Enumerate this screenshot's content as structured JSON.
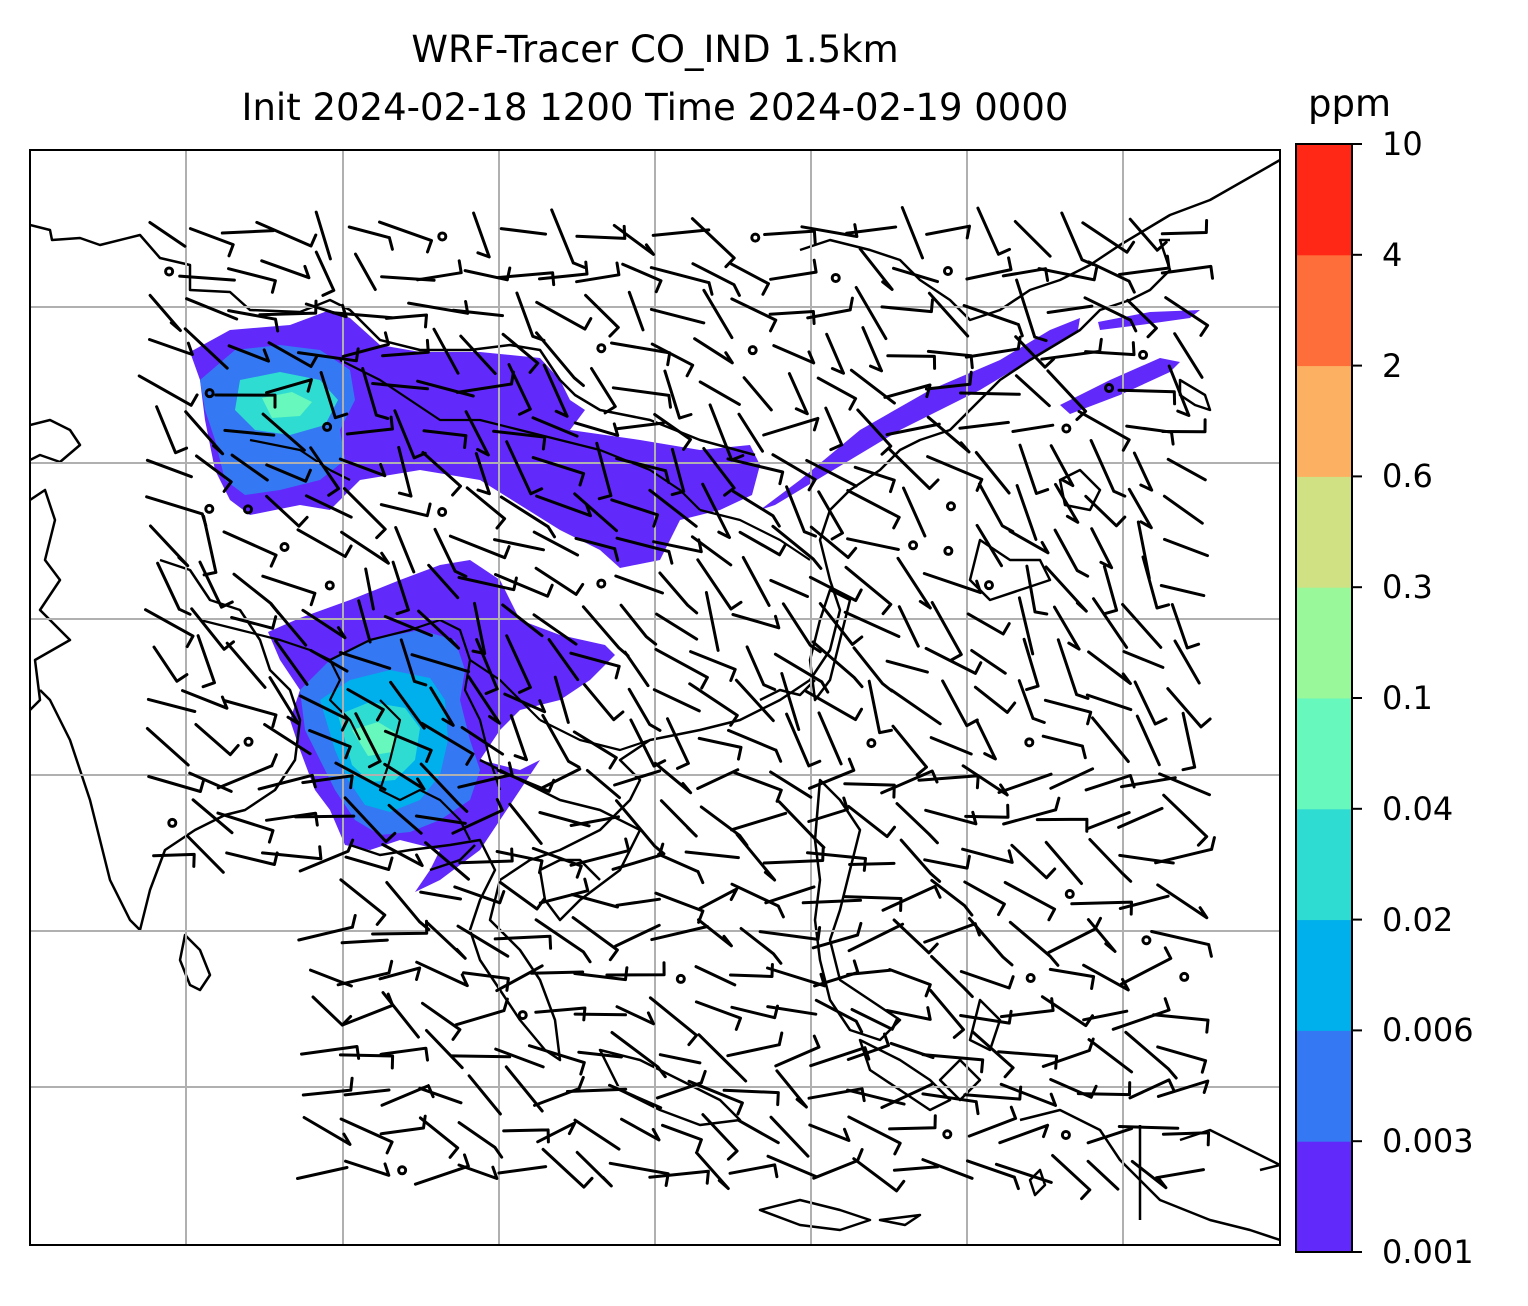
{
  "title": {
    "line1": "WRF-Tracer CO_IND 1.5km",
    "line2": "Init 2024-02-18 1200 Time 2024-02-19 0000"
  },
  "colorbar": {
    "unit": "ppm",
    "levels": [
      "0.001",
      "0.003",
      "0.006",
      "0.02",
      "0.04",
      "0.1",
      "0.3",
      "0.6",
      "2",
      "4",
      "10"
    ],
    "colors": [
      "#6229fb",
      "#3478f3",
      "#00b0ec",
      "#2fdcd2",
      "#66f8bc",
      "#98f89a",
      "#cfe183",
      "#fcb162",
      "#fe6e3a",
      "#ff2816"
    ]
  },
  "map": {
    "gridlines": true,
    "features": [
      "coastlines",
      "country-borders",
      "wind-barbs",
      "calm-circles"
    ]
  }
}
